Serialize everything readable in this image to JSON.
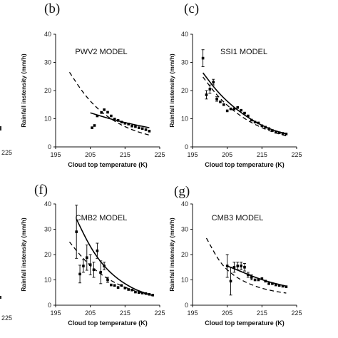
{
  "edge_fragments": {
    "left_tick_225_top": "225",
    "left_tick_225_bottom": "225"
  },
  "chart_data": [
    {
      "type": "scatter",
      "panel_label": "(b)",
      "title": "PWV2 MODEL",
      "xlabel": "Cloud top temperature (K)",
      "ylabel": "Rainfall instensity (mm/h)",
      "xlim": [
        195,
        225
      ],
      "ylim": [
        0,
        40
      ],
      "xticks": [
        195,
        205,
        215,
        225
      ],
      "yticks": [
        0,
        10,
        20,
        30,
        40
      ],
      "grid": false,
      "points": [
        {
          "x": 205.5,
          "y": 6.8
        },
        {
          "x": 206.2,
          "y": 7.6
        },
        {
          "x": 207.0,
          "y": 11.0
        },
        {
          "x": 208.2,
          "y": 12.2
        },
        {
          "x": 209.0,
          "y": 13.2
        },
        {
          "x": 210.0,
          "y": 12.3
        },
        {
          "x": 211.0,
          "y": 11.0
        },
        {
          "x": 212.0,
          "y": 9.9
        },
        {
          "x": 213.0,
          "y": 9.4
        },
        {
          "x": 214.0,
          "y": 8.8
        },
        {
          "x": 215.0,
          "y": 8.4
        },
        {
          "x": 216.0,
          "y": 8.1
        },
        {
          "x": 217.0,
          "y": 7.4
        },
        {
          "x": 218.0,
          "y": 7.2
        },
        {
          "x": 219.0,
          "y": 6.8
        },
        {
          "x": 220.0,
          "y": 6.5
        },
        {
          "x": 221.0,
          "y": 6.1
        },
        {
          "x": 222.0,
          "y": 5.6
        }
      ],
      "series": [
        {
          "style": "solid",
          "x": [
            205,
            210,
            215,
            220,
            222
          ],
          "y": [
            12.1,
            10.2,
            8.6,
            7.3,
            6.8
          ]
        },
        {
          "style": "dashed",
          "x": [
            199,
            203,
            207,
            211,
            215,
            219,
            222
          ],
          "y": [
            26.5,
            19.0,
            13.6,
            9.8,
            7.1,
            5.2,
            4.2
          ]
        }
      ]
    },
    {
      "type": "scatter",
      "panel_label": "(c)",
      "title": "SSI1 MODEL",
      "xlabel": "Cloud top temperature (K)",
      "ylabel": "Rainfall instensity (mm/h)",
      "xlim": [
        195,
        225
      ],
      "ylim": [
        0,
        40
      ],
      "xticks": [
        195,
        205,
        215,
        225
      ],
      "yticks": [
        0,
        10,
        20,
        30,
        40
      ],
      "grid": false,
      "points": [
        {
          "x": 198.0,
          "y": 31.5,
          "err": 3.0
        },
        {
          "x": 199.0,
          "y": 18.5,
          "err": 1.5
        },
        {
          "x": 200.0,
          "y": 20.5,
          "err": 1.5
        },
        {
          "x": 201.0,
          "y": 23.0,
          "err": 1.0
        },
        {
          "x": 202.0,
          "y": 17.0,
          "err": 0.8
        },
        {
          "x": 203.0,
          "y": 16.0
        },
        {
          "x": 204.0,
          "y": 15.0
        },
        {
          "x": 205.0,
          "y": 12.8
        },
        {
          "x": 206.0,
          "y": 13.5
        },
        {
          "x": 207.0,
          "y": 13.5
        },
        {
          "x": 208.0,
          "y": 14.0
        },
        {
          "x": 209.0,
          "y": 13.0
        },
        {
          "x": 210.0,
          "y": 12.0
        },
        {
          "x": 211.0,
          "y": 11.0
        },
        {
          "x": 212.0,
          "y": 9.5
        },
        {
          "x": 213.0,
          "y": 8.8
        },
        {
          "x": 214.0,
          "y": 8.5
        },
        {
          "x": 215.0,
          "y": 7.5
        },
        {
          "x": 216.0,
          "y": 7.0
        },
        {
          "x": 217.0,
          "y": 6.5
        },
        {
          "x": 218.0,
          "y": 5.8
        },
        {
          "x": 219.0,
          "y": 5.2
        },
        {
          "x": 220.0,
          "y": 5.0
        },
        {
          "x": 221.0,
          "y": 4.8
        },
        {
          "x": 222.0,
          "y": 4.6
        }
      ],
      "series": [
        {
          "style": "solid",
          "x": [
            198,
            202,
            206,
            210,
            214,
            218,
            222
          ],
          "y": [
            26.3,
            19.8,
            15.0,
            11.2,
            8.2,
            6.0,
            4.6
          ]
        },
        {
          "style": "dashed",
          "x": [
            198,
            202,
            206,
            210,
            214,
            218,
            222
          ],
          "y": [
            24.8,
            18.3,
            13.6,
            10.0,
            7.3,
            5.3,
            3.9
          ]
        }
      ]
    },
    {
      "type": "scatter",
      "panel_label": "(f)",
      "title": "CMB2 MODEL",
      "xlabel": "Cloud top temperature (K)",
      "ylabel": "Rainfall instensity (mm/h)",
      "xlim": [
        195,
        225
      ],
      "ylim": [
        0,
        40
      ],
      "xticks": [
        195,
        205,
        215,
        225
      ],
      "yticks": [
        0,
        10,
        20,
        30,
        40
      ],
      "grid": false,
      "points": [
        {
          "x": 201.0,
          "y": 29.0,
          "err": 10.5
        },
        {
          "x": 202.0,
          "y": 12.3,
          "err": 3.5
        },
        {
          "x": 203.0,
          "y": 15.5,
          "err": 2.5
        },
        {
          "x": 204.0,
          "y": 18.8,
          "err": 5.0
        },
        {
          "x": 205.0,
          "y": 16.0,
          "err": 4.0
        },
        {
          "x": 206.0,
          "y": 14.0,
          "err": 3.0
        },
        {
          "x": 207.0,
          "y": 21.5,
          "err": 3.0
        },
        {
          "x": 208.0,
          "y": 13.0,
          "err": 4.5
        },
        {
          "x": 209.0,
          "y": 15.5,
          "err": 1.5
        },
        {
          "x": 210.0,
          "y": 10.0,
          "err": 1.0
        },
        {
          "x": 211.0,
          "y": 8.0
        },
        {
          "x": 212.0,
          "y": 7.8
        },
        {
          "x": 213.0,
          "y": 7.0
        },
        {
          "x": 214.0,
          "y": 7.8
        },
        {
          "x": 215.0,
          "y": 6.8
        },
        {
          "x": 216.0,
          "y": 6.2
        },
        {
          "x": 217.0,
          "y": 6.0
        },
        {
          "x": 218.0,
          "y": 5.2
        },
        {
          "x": 219.0,
          "y": 5.0
        },
        {
          "x": 220.0,
          "y": 4.8
        },
        {
          "x": 221.0,
          "y": 4.6
        },
        {
          "x": 222.0,
          "y": 4.3
        },
        {
          "x": 223.0,
          "y": 4.0
        }
      ],
      "series": [
        {
          "style": "solid",
          "x": [
            201,
            205,
            209,
            213,
            217,
            220,
            223
          ],
          "y": [
            34.0,
            22.8,
            15.2,
            10.2,
            6.8,
            5.1,
            3.8
          ]
        },
        {
          "style": "dashed",
          "x": [
            199,
            203,
            207,
            211,
            215,
            219,
            223
          ],
          "y": [
            25.0,
            18.2,
            13.2,
            9.6,
            7.0,
            5.2,
            3.8
          ]
        }
      ]
    },
    {
      "type": "scatter",
      "panel_label": "(g)",
      "title": "CMB3 MODEL",
      "xlabel": "Cloud top temperature (K)",
      "ylabel": "Rainfall instensity (mm/h)",
      "xlim": [
        195,
        225
      ],
      "ylim": [
        0,
        40
      ],
      "xticks": [
        195,
        205,
        215,
        225
      ],
      "yticks": [
        0,
        10,
        20,
        30,
        40
      ],
      "grid": false,
      "points": [
        {
          "x": 205.0,
          "y": 15.5,
          "err": 4.5
        },
        {
          "x": 206.0,
          "y": 9.5,
          "err": 5.5
        },
        {
          "x": 207.0,
          "y": 15.0,
          "err": 2.0
        },
        {
          "x": 208.0,
          "y": 15.5,
          "err": 1.5
        },
        {
          "x": 209.0,
          "y": 15.5,
          "err": 1.5
        },
        {
          "x": 210.0,
          "y": 15.0,
          "err": 1.5
        },
        {
          "x": 211.0,
          "y": 12.0,
          "err": 1.0
        },
        {
          "x": 212.0,
          "y": 11.0,
          "err": 1.0
        },
        {
          "x": 213.0,
          "y": 10.0
        },
        {
          "x": 214.0,
          "y": 10.0
        },
        {
          "x": 215.0,
          "y": 10.5
        },
        {
          "x": 216.0,
          "y": 9.5
        },
        {
          "x": 217.0,
          "y": 8.5
        },
        {
          "x": 218.0,
          "y": 8.5
        },
        {
          "x": 219.0,
          "y": 8.0
        },
        {
          "x": 220.0,
          "y": 7.8
        },
        {
          "x": 221.0,
          "y": 7.5
        },
        {
          "x": 222.0,
          "y": 7.3
        }
      ],
      "series": [
        {
          "style": "solid",
          "x": [
            205,
            209,
            213,
            217,
            220,
            222
          ],
          "y": [
            15.5,
            13.3,
            11.0,
            9.2,
            8.2,
            7.5
          ]
        },
        {
          "style": "dashed",
          "x": [
            199,
            203,
            207,
            211,
            215,
            219,
            222
          ],
          "y": [
            26.5,
            16.5,
            11.5,
            8.6,
            6.6,
            5.4,
            4.8
          ]
        }
      ]
    }
  ]
}
